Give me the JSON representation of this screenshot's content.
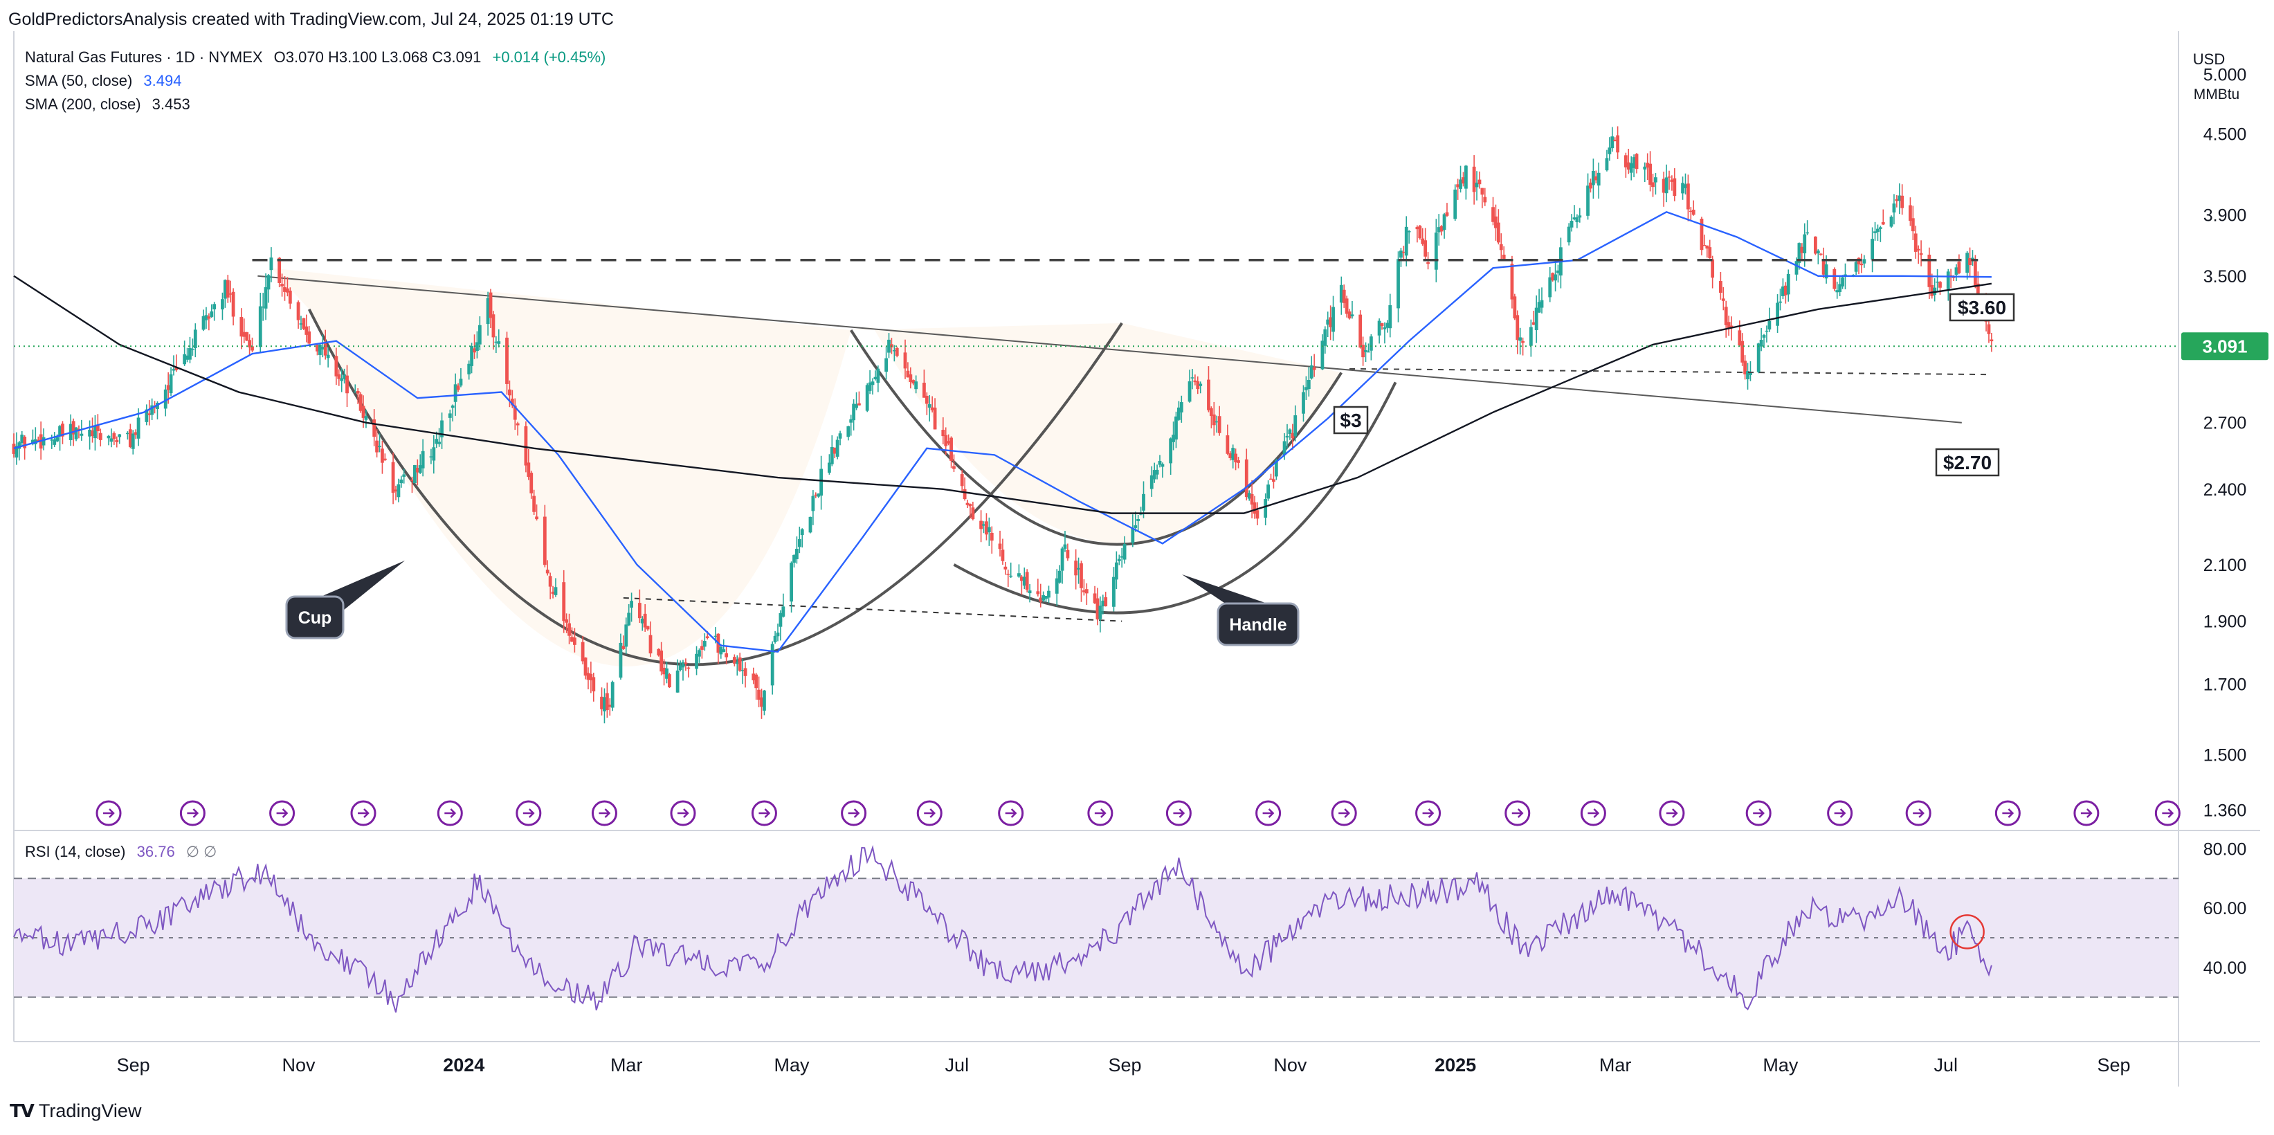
{
  "header": {
    "caption": "GoldPredictorsAnalysis created with TradingView.com, Jul 24, 2025 01:19 UTC"
  },
  "legend": {
    "symbol": "Natural Gas Futures · 1D · NYMEX",
    "ohlc": "O3.070  H3.100  L3.068  C3.091",
    "change": "+0.014 (+0.45%)",
    "sma50_label": "SMA (50, close)",
    "sma50_value": "3.494",
    "sma200_label": "SMA (200, close)",
    "sma200_value": "3.453",
    "rsi_label": "RSI (14, close)",
    "rsi_value": "36.76",
    "rsi_extra": "∅  ∅"
  },
  "price_axis": {
    "currency": "USD",
    "unit": "MMBtu",
    "current_price": "3.091",
    "ticks": [
      "5.000",
      "4.500",
      "3.900",
      "3.500",
      "3.091",
      "2.700",
      "2.400",
      "2.100",
      "1.900",
      "1.700",
      "1.500",
      "1.360"
    ]
  },
  "rsi_axis": {
    "ticks": [
      "80.00",
      "60.00",
      "40.00"
    ]
  },
  "time_axis": {
    "ticks": [
      {
        "label": "Sep",
        "bold": false
      },
      {
        "label": "Nov",
        "bold": false
      },
      {
        "label": "2024",
        "bold": true
      },
      {
        "label": "Mar",
        "bold": false
      },
      {
        "label": "May",
        "bold": false
      },
      {
        "label": "Jul",
        "bold": false
      },
      {
        "label": "Sep",
        "bold": false
      },
      {
        "label": "Nov",
        "bold": false
      },
      {
        "label": "2025",
        "bold": true
      },
      {
        "label": "Mar",
        "bold": false
      },
      {
        "label": "May",
        "bold": false
      },
      {
        "label": "Jul",
        "bold": false
      },
      {
        "label": "Sep",
        "bold": false
      }
    ]
  },
  "annotations": {
    "cup": "Cup",
    "handle": "Handle",
    "level_360": "$3.60",
    "level_3": "$3",
    "level_270": "$2.70"
  },
  "colors": {
    "up": "#26a69a",
    "down": "#ef5350",
    "sma50": "#2962ff",
    "sma200": "#131722",
    "rsi": "#7e57c2",
    "rsi_band": "#ede7f6",
    "current_price": "#26a65b",
    "event_icon": "#7b1fa2"
  },
  "chart_data": {
    "type": "candlestick",
    "title": "Natural Gas Futures · 1D · NYMEX",
    "x_range": [
      "2023-07-24",
      "2025-09-30"
    ],
    "y_scale": "log",
    "y_range": [
      1.32,
      5.3
    ],
    "price_path": [
      [
        "2023-07-24",
        2.6
      ],
      [
        "2023-08-15",
        2.65
      ],
      [
        "2023-09-05",
        2.62
      ],
      [
        "2023-09-22",
        2.95
      ],
      [
        "2023-10-10",
        3.42
      ],
      [
        "2023-10-20",
        3.05
      ],
      [
        "2023-10-27",
        3.6
      ],
      [
        "2023-11-08",
        3.2
      ],
      [
        "2023-11-28",
        2.8
      ],
      [
        "2023-12-12",
        2.38
      ],
      [
        "2023-12-27",
        2.6
      ],
      [
        "2024-01-10",
        3.1
      ],
      [
        "2024-01-15",
        3.32
      ],
      [
        "2024-01-25",
        2.7
      ],
      [
        "2024-02-05",
        2.1
      ],
      [
        "2024-02-20",
        1.72
      ],
      [
        "2024-02-28",
        1.62
      ],
      [
        "2024-03-08",
        1.95
      ],
      [
        "2024-03-22",
        1.7
      ],
      [
        "2024-04-05",
        1.85
      ],
      [
        "2024-04-18",
        1.75
      ],
      [
        "2024-04-25",
        1.65
      ],
      [
        "2024-05-05",
        2.05
      ],
      [
        "2024-05-20",
        2.55
      ],
      [
        "2024-06-05",
        2.95
      ],
      [
        "2024-06-11",
        3.1
      ],
      [
        "2024-06-25",
        2.8
      ],
      [
        "2024-07-10",
        2.35
      ],
      [
        "2024-07-25",
        2.1
      ],
      [
        "2024-08-06",
        1.95
      ],
      [
        "2024-08-15",
        2.15
      ],
      [
        "2024-08-28",
        1.92
      ],
      [
        "2024-09-10",
        2.25
      ],
      [
        "2024-09-25",
        2.7
      ],
      [
        "2024-10-02",
        2.92
      ],
      [
        "2024-10-10",
        2.7
      ],
      [
        "2024-10-25",
        2.3
      ],
      [
        "2024-11-08",
        2.7
      ],
      [
        "2024-11-18",
        3.1
      ],
      [
        "2024-11-25",
        3.4
      ],
      [
        "2024-12-03",
        3.05
      ],
      [
        "2024-12-12",
        3.25
      ],
      [
        "2024-12-20",
        3.85
      ],
      [
        "2024-12-27",
        3.6
      ],
      [
        "2025-01-10",
        4.2
      ],
      [
        "2025-01-20",
        3.9
      ],
      [
        "2025-01-30",
        3.1
      ],
      [
        "2025-02-10",
        3.45
      ],
      [
        "2025-02-20",
        3.9
      ],
      [
        "2025-03-05",
        4.45
      ],
      [
        "2025-03-10",
        4.3
      ],
      [
        "2025-03-20",
        4.15
      ],
      [
        "2025-04-01",
        4.05
      ],
      [
        "2025-04-15",
        3.3
      ],
      [
        "2025-04-24",
        2.95
      ],
      [
        "2025-05-05",
        3.3
      ],
      [
        "2025-05-15",
        3.75
      ],
      [
        "2025-05-27",
        3.4
      ],
      [
        "2025-06-05",
        3.6
      ],
      [
        "2025-06-20",
        4.0
      ],
      [
        "2025-06-30",
        3.4
      ],
      [
        "2025-07-10",
        3.55
      ],
      [
        "2025-07-15",
        3.62
      ],
      [
        "2025-07-23",
        3.091
      ]
    ],
    "series": [
      {
        "name": "SMA (50, close)",
        "values": [
          [
            "2023-07-24",
            2.58
          ],
          [
            "2023-09-10",
            2.75
          ],
          [
            "2023-10-20",
            3.05
          ],
          [
            "2023-11-20",
            3.12
          ],
          [
            "2023-12-20",
            2.82
          ],
          [
            "2024-01-20",
            2.85
          ],
          [
            "2024-02-10",
            2.55
          ],
          [
            "2024-03-10",
            2.1
          ],
          [
            "2024-04-10",
            1.82
          ],
          [
            "2024-05-01",
            1.8
          ],
          [
            "2024-06-01",
            2.2
          ],
          [
            "2024-06-25",
            2.58
          ],
          [
            "2024-07-20",
            2.55
          ],
          [
            "2024-08-20",
            2.35
          ],
          [
            "2024-09-20",
            2.18
          ],
          [
            "2024-10-20",
            2.4
          ],
          [
            "2024-11-20",
            2.72
          ],
          [
            "2024-12-20",
            3.12
          ],
          [
            "2025-01-20",
            3.55
          ],
          [
            "2025-02-20",
            3.6
          ],
          [
            "2025-03-25",
            3.92
          ],
          [
            "2025-04-20",
            3.75
          ],
          [
            "2025-05-20",
            3.5
          ],
          [
            "2025-06-20",
            3.5
          ],
          [
            "2025-07-23",
            3.494
          ]
        ]
      },
      {
        "name": "SMA (200, close)",
        "values": [
          [
            "2023-07-24",
            3.5
          ],
          [
            "2023-09-01",
            3.1
          ],
          [
            "2023-10-15",
            2.85
          ],
          [
            "2023-12-01",
            2.7
          ],
          [
            "2024-02-01",
            2.58
          ],
          [
            "2024-05-01",
            2.45
          ],
          [
            "2024-07-01",
            2.4
          ],
          [
            "2024-09-01",
            2.3
          ],
          [
            "2024-10-20",
            2.3
          ],
          [
            "2024-12-01",
            2.45
          ],
          [
            "2025-01-20",
            2.75
          ],
          [
            "2025-03-20",
            3.1
          ],
          [
            "2025-05-20",
            3.3
          ],
          [
            "2025-07-23",
            3.453
          ]
        ]
      },
      {
        "name": "RSI (14, close)",
        "values": [
          [
            "2023-07-24",
            50
          ],
          [
            "2023-08-20",
            48
          ],
          [
            "2023-09-15",
            55
          ],
          [
            "2023-10-10",
            68
          ],
          [
            "2023-10-27",
            72
          ],
          [
            "2023-11-10",
            50
          ],
          [
            "2023-12-01",
            38
          ],
          [
            "2023-12-12",
            28
          ],
          [
            "2024-01-12",
            70
          ],
          [
            "2024-01-25",
            45
          ],
          [
            "2024-02-10",
            35
          ],
          [
            "2024-02-25",
            28
          ],
          [
            "2024-03-10",
            48
          ],
          [
            "2024-04-01",
            42
          ],
          [
            "2024-04-25",
            40
          ],
          [
            "2024-05-20",
            70
          ],
          [
            "2024-06-05",
            78
          ],
          [
            "2024-06-25",
            60
          ],
          [
            "2024-07-20",
            38
          ],
          [
            "2024-08-10",
            40
          ],
          [
            "2024-09-01",
            50
          ],
          [
            "2024-09-25",
            75
          ],
          [
            "2024-10-20",
            38
          ],
          [
            "2024-11-20",
            62
          ],
          [
            "2024-12-20",
            64
          ],
          [
            "2025-01-15",
            68
          ],
          [
            "2025-02-01",
            45
          ],
          [
            "2025-03-05",
            66
          ],
          [
            "2025-03-25",
            55
          ],
          [
            "2025-04-24",
            30
          ],
          [
            "2025-05-15",
            60
          ],
          [
            "2025-06-05",
            55
          ],
          [
            "2025-06-20",
            64
          ],
          [
            "2025-07-05",
            45
          ],
          [
            "2025-07-15",
            52
          ],
          [
            "2025-07-23",
            36.76
          ]
        ]
      }
    ],
    "levels": [
      3.6,
      3.0,
      2.7
    ]
  }
}
